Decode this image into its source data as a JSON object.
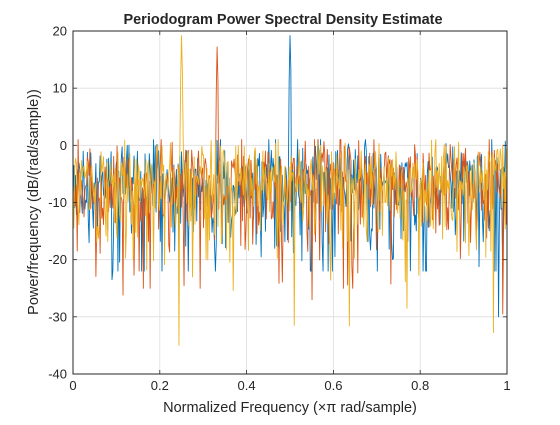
{
  "figure": {
    "background": "#ffffff"
  },
  "chart_data": {
    "type": "line",
    "title": "Periodogram Power Spectral Density Estimate",
    "xlabel": "Normalized Frequency  (×π rad/sample)",
    "ylabel": "Power/frequency (dB/(rad/sample))",
    "xlim": [
      0,
      1
    ],
    "ylim": [
      -40,
      20
    ],
    "xticks": [
      0,
      0.2,
      0.4,
      0.6,
      0.8,
      1
    ],
    "xtick_labels": [
      "0",
      "0.2",
      "0.4",
      "0.6",
      "0.8",
      "1"
    ],
    "yticks": [
      -40,
      -30,
      -20,
      -10,
      0,
      10,
      20
    ],
    "ytick_labels": [
      "-40",
      "-30",
      "-20",
      "-10",
      "0",
      "10",
      "20"
    ],
    "grid": true,
    "legend": "none",
    "points_per_series": 513,
    "series": [
      {
        "color": "#0072BD",
        "peaks": [
          {
            "x": 0.5,
            "y": 19.2
          }
        ],
        "min_points": [
          {
            "x": 0.09,
            "y": -23.5
          },
          {
            "x": 0.5,
            "y": -25.5
          },
          {
            "x": 0.98,
            "y": -30.0
          }
        ],
        "noise_floor_mean": -7,
        "noise_range": [
          -24,
          1
        ]
      },
      {
        "color": "#D95319",
        "peaks": [
          {
            "x": 0.333,
            "y": 17.2
          }
        ],
        "min_points": [
          {
            "x": 0.115,
            "y": -26.2
          },
          {
            "x": 0.55,
            "y": -27.0
          },
          {
            "x": 0.99,
            "y": -29.5
          }
        ],
        "noise_floor_mean": -7,
        "noise_range": [
          -27,
          1
        ]
      },
      {
        "color": "#EDB120",
        "peaks": [
          {
            "x": 0.25,
            "y": 19.2
          }
        ],
        "min_points": [
          {
            "x": 0.245,
            "y": -35.0
          },
          {
            "x": 0.51,
            "y": -31.5
          },
          {
            "x": 0.77,
            "y": -28.5
          }
        ],
        "noise_floor_mean": -7,
        "noise_range": [
          -35,
          1
        ]
      }
    ]
  }
}
